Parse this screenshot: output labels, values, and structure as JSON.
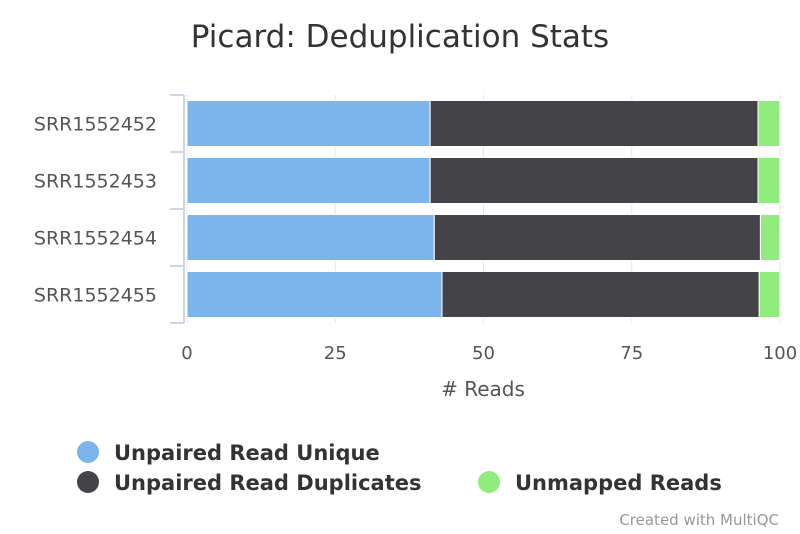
{
  "chart_data": {
    "type": "bar",
    "orientation": "horizontal",
    "stacked": true,
    "stacking": "percent",
    "title": "Picard: Deduplication Stats",
    "xlabel": "# Reads",
    "ylabel": "",
    "xlim": [
      0,
      100
    ],
    "x_ticks": [
      "0",
      "25",
      "50",
      "75",
      "100"
    ],
    "grid": true,
    "legend_position": "bottom",
    "categories": [
      "SRR1552452",
      "SRR1552453",
      "SRR1552454",
      "SRR1552455"
    ],
    "series": [
      {
        "name": "Unpaired Read Unique",
        "color": "#7cb5ec",
        "values": [
          41.0,
          41.0,
          41.7,
          43.0
        ]
      },
      {
        "name": "Unpaired Read Duplicates",
        "color": "#434348",
        "values": [
          55.3,
          55.3,
          55.0,
          53.5
        ]
      },
      {
        "name": "Unmapped Reads",
        "color": "#90ed7d",
        "values": [
          3.7,
          3.7,
          3.3,
          3.5
        ]
      }
    ]
  },
  "credit": "Created with MultiQC"
}
